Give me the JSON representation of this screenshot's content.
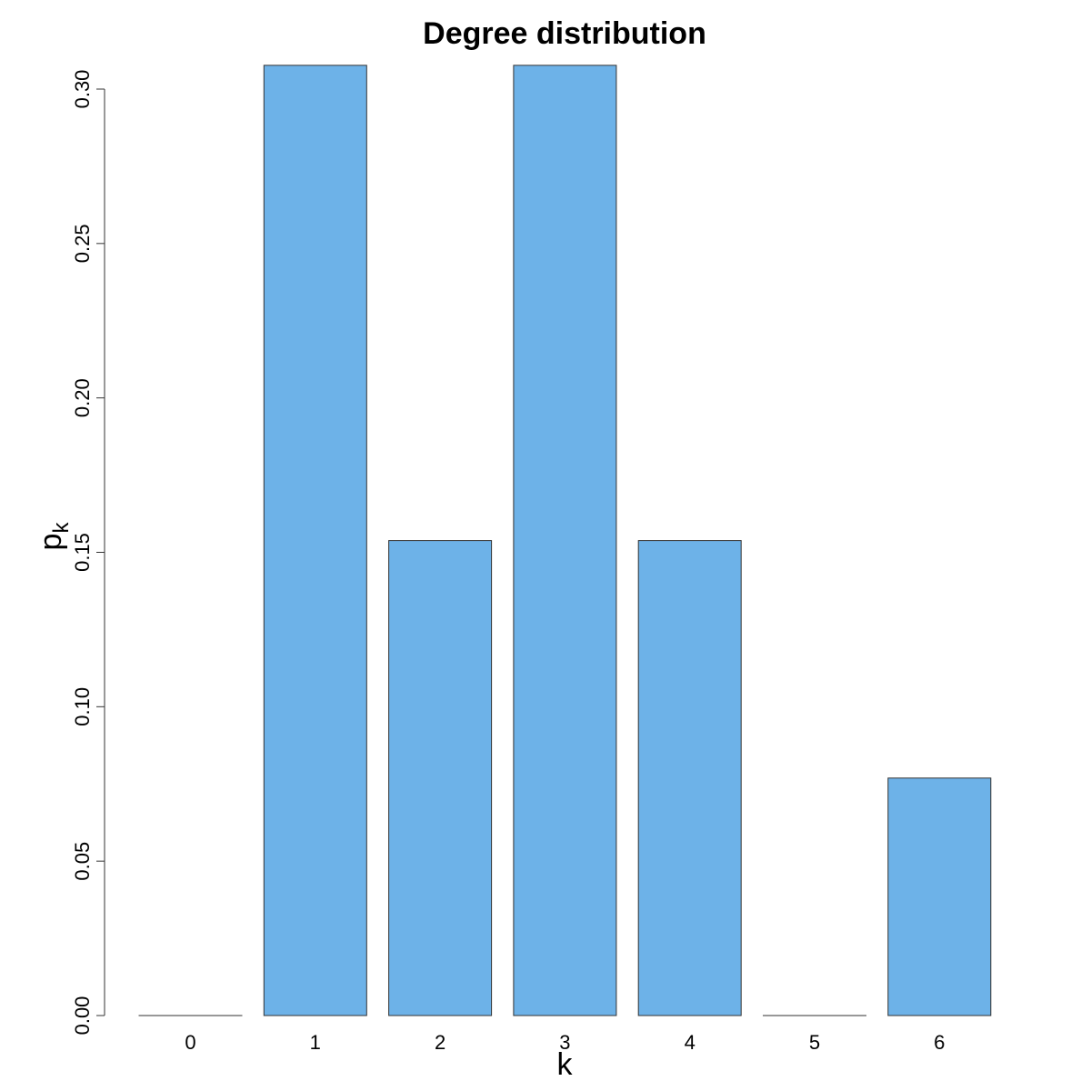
{
  "chart_data": {
    "type": "bar",
    "title": "Degree distribution",
    "xlabel": "k",
    "ylabel": "p",
    "ylabel_subscript": "k",
    "categories": [
      "0",
      "1",
      "2",
      "3",
      "4",
      "5",
      "6"
    ],
    "values": [
      0.0,
      0.3077,
      0.1538,
      0.3077,
      0.1538,
      0.0,
      0.0769
    ],
    "yticks": [
      "0.00",
      "0.05",
      "0.10",
      "0.15",
      "0.20",
      "0.25",
      "0.30"
    ],
    "ylim": [
      0,
      0.31
    ],
    "grid": false,
    "legend": "none",
    "bar_color": "#6db2e8",
    "bar_border_color": "#333333"
  }
}
